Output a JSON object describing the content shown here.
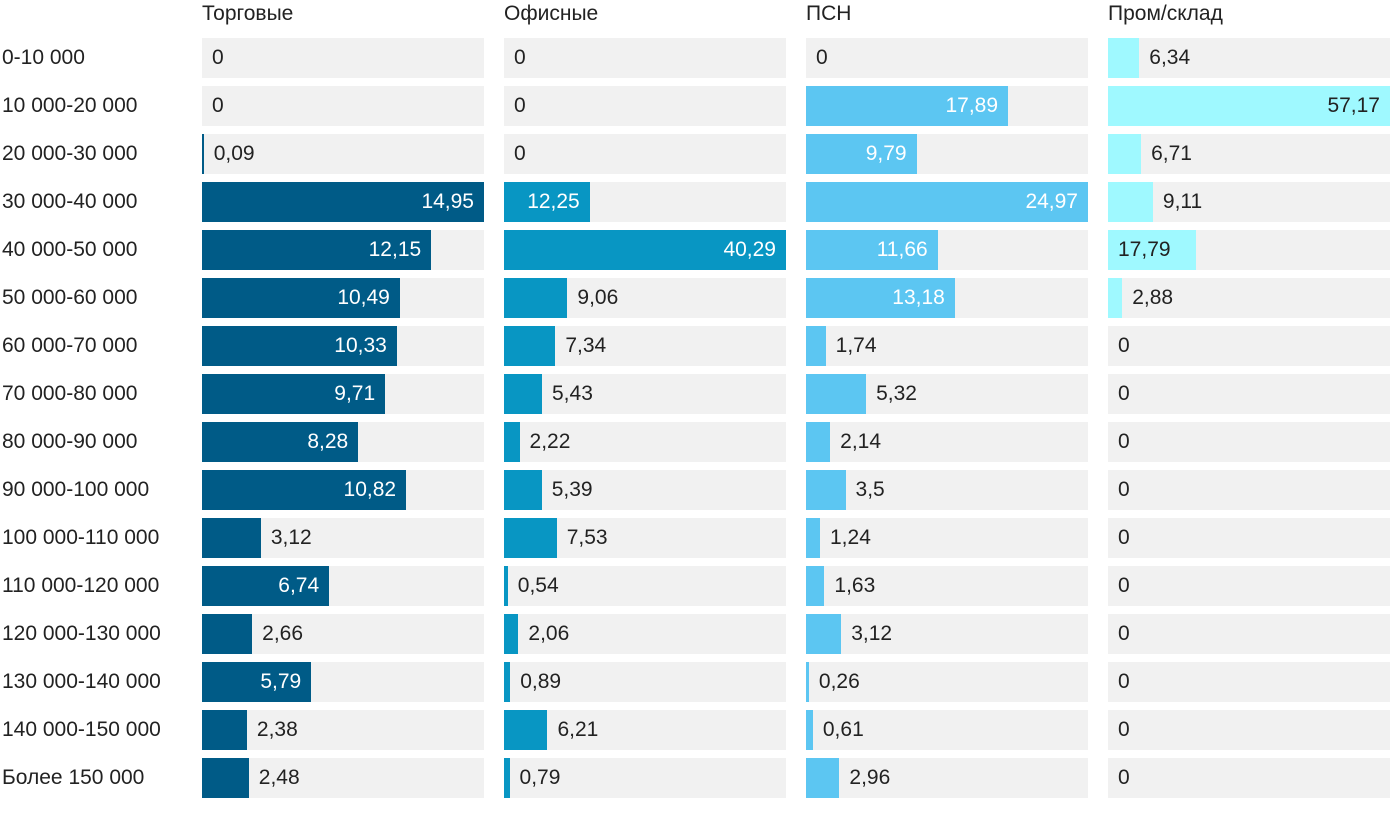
{
  "chart_data": {
    "type": "bar",
    "orientation": "horizontal",
    "layout": "small-multiples",
    "categories": [
      "0-10 000",
      "10 000-20 000",
      "20 000-30 000",
      "30 000-40 000",
      "40 000-50 000",
      "50 000-60 000",
      "60 000-70 000",
      "70 000-80 000",
      "80 000-90 000",
      "90 000-100 000",
      "100 000-110 000",
      "110 000-120 000",
      "120 000-130 000",
      "130 000-140 000",
      "140 000-150 000",
      "Более 150 000"
    ],
    "series": [
      {
        "name": "Торговые",
        "color": "#005b87",
        "values": [
          0,
          0,
          0.09,
          14.95,
          12.15,
          10.49,
          10.33,
          9.71,
          8.28,
          10.82,
          3.12,
          6.74,
          2.66,
          5.79,
          2.38,
          2.48
        ],
        "labels": [
          "0",
          "0",
          "0,09",
          "14,95",
          "12,15",
          "10,49",
          "10,33",
          "9,71",
          "8,28",
          "10,82",
          "3,12",
          "6,74",
          "2,66",
          "5,79",
          "2,38",
          "2,48"
        ]
      },
      {
        "name": "Офисные",
        "color": "#0896c3",
        "values": [
          0,
          0,
          0,
          12.25,
          40.29,
          9.06,
          7.34,
          5.43,
          2.22,
          5.39,
          7.53,
          0.54,
          2.06,
          0.89,
          6.21,
          0.79
        ],
        "labels": [
          "0",
          "0",
          "0",
          "12,25",
          "40,29",
          "9,06",
          "7,34",
          "5,43",
          "2,22",
          "5,39",
          "7,53",
          "0,54",
          "2,06",
          "0,89",
          "6,21",
          "0,79"
        ]
      },
      {
        "name": "ПСН",
        "color": "#5cc6f2",
        "values": [
          0,
          17.89,
          9.79,
          24.97,
          11.66,
          13.18,
          1.74,
          5.32,
          2.14,
          3.5,
          1.24,
          1.63,
          3.12,
          0.26,
          0.61,
          2.96
        ],
        "labels": [
          "0",
          "17,89",
          "9,79",
          "24,97",
          "11,66",
          "13,18",
          "1,74",
          "5,32",
          "2,14",
          "3,5",
          "1,24",
          "1,63",
          "3,12",
          "0,26",
          "0,61",
          "2,96"
        ]
      },
      {
        "name": "Пром/склад",
        "color": "#9ff9ff",
        "values": [
          6.34,
          57.17,
          6.71,
          9.11,
          17.79,
          2.88,
          0,
          0,
          0,
          0,
          0,
          0,
          0,
          0,
          0,
          0
        ],
        "labels": [
          "6,34",
          "57,17",
          "6,71",
          "9,11",
          "17,79",
          "2,88",
          "0",
          "0",
          "0",
          "0",
          "0",
          "0",
          "0",
          "0",
          "0",
          "0"
        ]
      }
    ],
    "legend": "none",
    "grid": false
  }
}
